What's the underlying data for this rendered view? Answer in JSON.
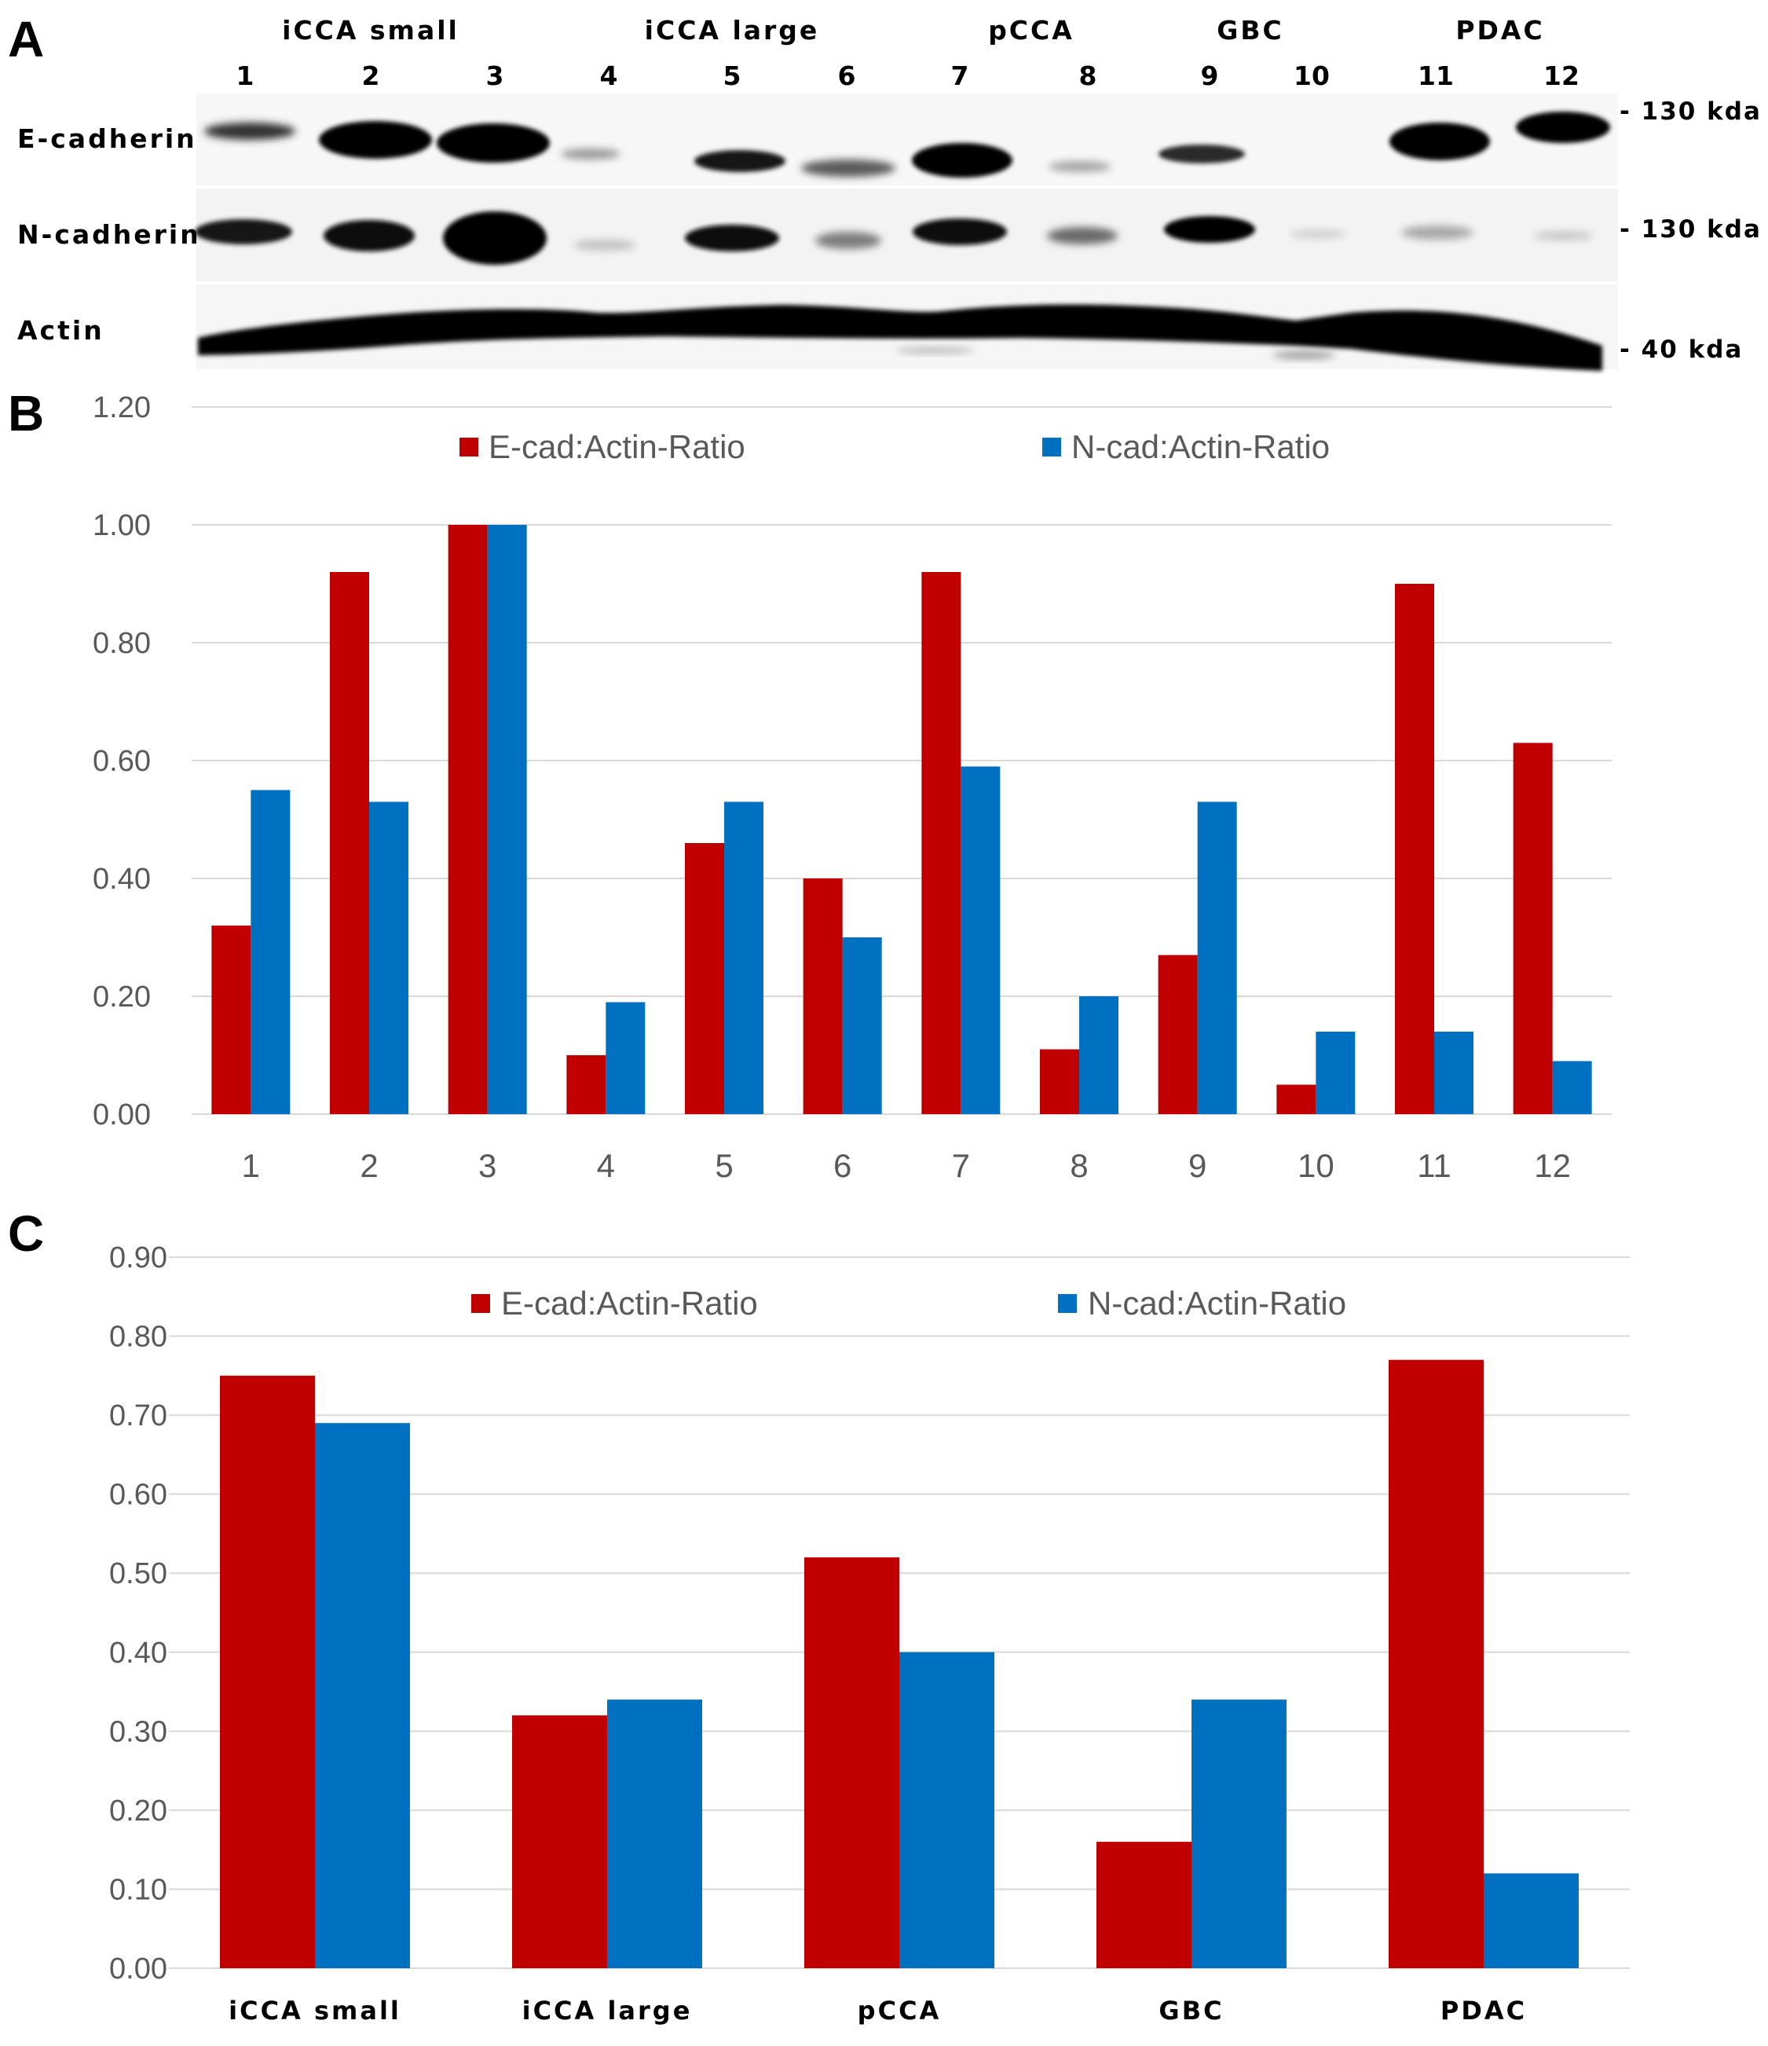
{
  "panel_labels": [
    "A",
    "B",
    "C"
  ],
  "blot": {
    "groups": [
      {
        "label": "iCCA small",
        "lanes": [
          1,
          2,
          3
        ]
      },
      {
        "label": "iCCA large",
        "lanes": [
          4,
          5,
          6
        ]
      },
      {
        "label": "pCCA",
        "lanes": [
          7,
          8
        ]
      },
      {
        "label": "GBC",
        "lanes": [
          9,
          10
        ]
      },
      {
        "label": "PDAC",
        "lanes": [
          11,
          12
        ]
      }
    ],
    "lanes": [
      "1",
      "2",
      "3",
      "4",
      "5",
      "6",
      "7",
      "8",
      "9",
      "10",
      "11",
      "12"
    ],
    "rows": [
      {
        "label": "E-cadherin",
        "marker": "- 130 kda"
      },
      {
        "label": "N-cadherin",
        "marker": "- 130 kda"
      },
      {
        "label": "Actin",
        "marker": "- 40 kda"
      }
    ]
  },
  "colors": {
    "e_cad": "#c00000",
    "n_cad": "#0070c0",
    "grid": "#d9d9d9"
  },
  "chart_data": [
    {
      "type": "bar",
      "panel": "B",
      "categories": [
        "1",
        "2",
        "3",
        "4",
        "5",
        "6",
        "7",
        "8",
        "9",
        "10",
        "11",
        "12"
      ],
      "series": [
        {
          "name": "E-cad:Actin-Ratio",
          "values": [
            0.32,
            0.92,
            1.0,
            0.1,
            0.46,
            0.4,
            0.92,
            0.11,
            0.27,
            0.05,
            0.9,
            0.63
          ]
        },
        {
          "name": "N-cad:Actin-Ratio",
          "values": [
            0.55,
            0.53,
            1.0,
            0.19,
            0.53,
            0.3,
            0.59,
            0.2,
            0.53,
            0.14,
            0.14,
            0.09
          ]
        }
      ],
      "ylim": [
        0,
        1.2
      ],
      "yticks": [
        "0.00",
        "0.20",
        "0.40",
        "0.60",
        "0.80",
        "1.00",
        "1.20"
      ],
      "legend": "top",
      "grid": true
    },
    {
      "type": "bar",
      "panel": "C",
      "categories": [
        "iCCA small",
        "iCCA large",
        "pCCA",
        "GBC",
        "PDAC"
      ],
      "series": [
        {
          "name": "E-cad:Actin-Ratio",
          "values": [
            0.75,
            0.32,
            0.52,
            0.16,
            0.77
          ]
        },
        {
          "name": "N-cad:Actin-Ratio",
          "values": [
            0.69,
            0.34,
            0.4,
            0.34,
            0.12
          ]
        }
      ],
      "ylim": [
        0,
        0.9
      ],
      "yticks": [
        "0.00",
        "0.10",
        "0.20",
        "0.30",
        "0.40",
        "0.50",
        "0.60",
        "0.70",
        "0.80",
        "0.90"
      ],
      "legend": "top",
      "grid": true
    }
  ]
}
